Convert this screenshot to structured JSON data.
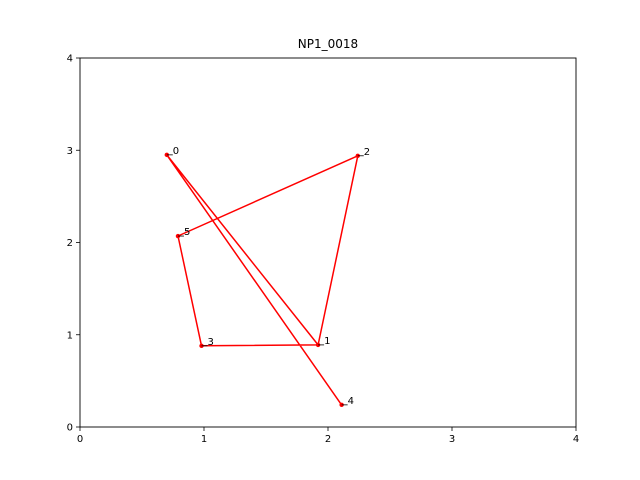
{
  "chart_data": {
    "type": "line",
    "title": "NP1_0018",
    "xlabel": "",
    "ylabel": "",
    "xlim": [
      0,
      4
    ],
    "ylim": [
      0,
      4
    ],
    "x_ticks": [
      "0",
      "1",
      "2",
      "3",
      "4"
    ],
    "y_ticks": [
      "0",
      "1",
      "2",
      "3",
      "4"
    ],
    "grid": false,
    "line_color": "#ff0000",
    "points": [
      {
        "label": "0",
        "x": 0.7,
        "y": 2.95
      },
      {
        "label": "1",
        "x": 1.92,
        "y": 0.89
      },
      {
        "label": "2",
        "x": 2.24,
        "y": 2.94
      },
      {
        "label": "3",
        "x": 0.98,
        "y": 0.88
      },
      {
        "label": "4",
        "x": 2.11,
        "y": 0.24
      },
      {
        "label": "5",
        "x": 0.79,
        "y": 2.07
      }
    ],
    "path_order": [
      "0",
      "1",
      "3",
      "5",
      "2",
      "1",
      "0",
      "4"
    ]
  }
}
